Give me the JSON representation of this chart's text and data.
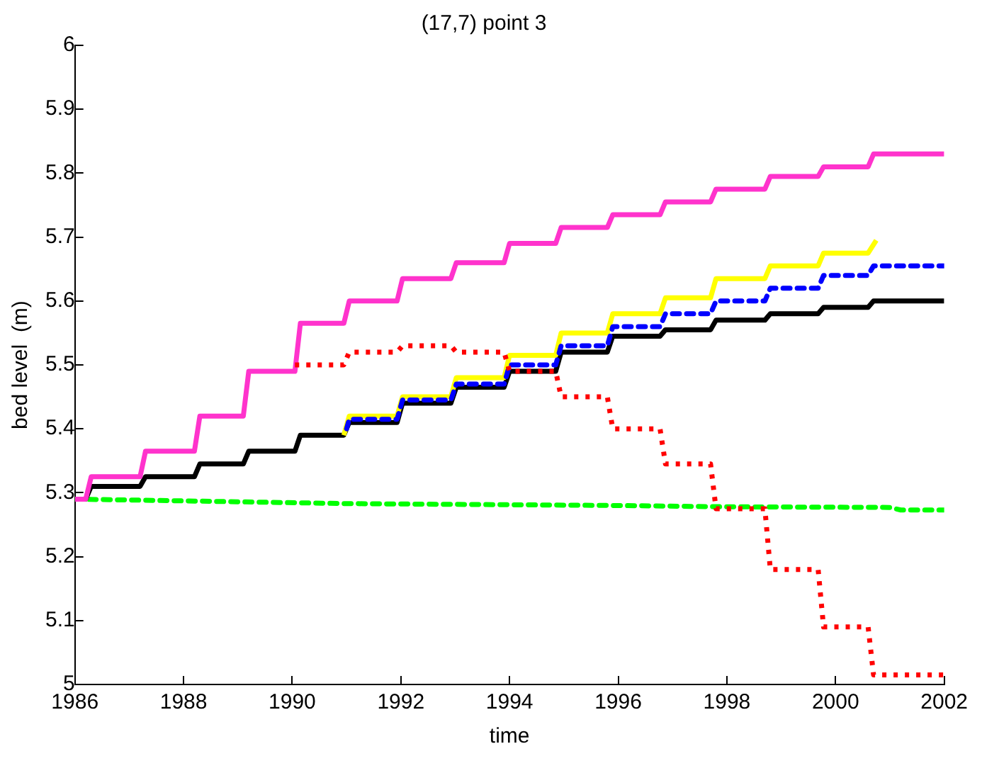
{
  "chart_data": {
    "type": "line",
    "title": "(17,7) point 3",
    "xlabel": "time",
    "ylabel": "bed level  (m)",
    "xlim": [
      1986,
      2002
    ],
    "xticks": [
      1986,
      1988,
      1990,
      1992,
      1994,
      1996,
      1998,
      2000,
      2002
    ],
    "ylim": [
      5,
      6
    ],
    "yticks": [
      5,
      5.1,
      5.2,
      5.3,
      5.4,
      5.5,
      5.6,
      5.7,
      5.8,
      5.9,
      6
    ],
    "grid": false,
    "legend": false,
    "marker": "none",
    "series": [
      {
        "color": "#00ff00",
        "line_style": "dashed",
        "x": [
          1986,
          1988.2,
          1991,
          1996,
          1998,
          2001,
          2001.2,
          2002
        ],
        "values": [
          5.29,
          5.287,
          5.283,
          5.28,
          5.278,
          5.277,
          5.273,
          5.273
        ]
      },
      {
        "color": "#000000",
        "line_style": "solid",
        "x": [
          1986,
          1986.2,
          1986.3,
          1987.2,
          1987.3,
          1988.2,
          1988.3,
          1989.1,
          1989.2,
          1990.05,
          1990.15,
          1990.95,
          1991.05,
          1991.93,
          1992.03,
          1992.92,
          1993.02,
          1993.9,
          1994,
          1994.85,
          1994.95,
          1995.8,
          1995.9,
          1996.77,
          1996.87,
          1997.7,
          1997.8,
          1998.7,
          1998.8,
          1999.68,
          1999.78,
          2000.6,
          2000.7,
          2002
        ],
        "values": [
          5.29,
          5.29,
          5.31,
          5.31,
          5.325,
          5.325,
          5.345,
          5.345,
          5.365,
          5.365,
          5.39,
          5.39,
          5.41,
          5.41,
          5.44,
          5.44,
          5.465,
          5.465,
          5.49,
          5.49,
          5.52,
          5.52,
          5.545,
          5.545,
          5.555,
          5.555,
          5.57,
          5.57,
          5.58,
          5.58,
          5.59,
          5.59,
          5.6,
          5.6
        ]
      },
      {
        "color": "#ffff00",
        "line_style": "solid",
        "x": [
          1990.95,
          1991.05,
          1991.93,
          1992.03,
          1992.92,
          1993.02,
          1993.9,
          1994,
          1994.85,
          1994.95,
          1995.8,
          1995.9,
          1996.77,
          1996.87,
          1997.7,
          1997.8,
          1998.7,
          1998.8,
          1999.68,
          1999.78,
          2000.6,
          2000.75
        ],
        "values": [
          5.39,
          5.42,
          5.42,
          5.45,
          5.45,
          5.48,
          5.48,
          5.515,
          5.515,
          5.55,
          5.55,
          5.58,
          5.58,
          5.605,
          5.605,
          5.635,
          5.635,
          5.655,
          5.655,
          5.675,
          5.675,
          5.695
        ]
      },
      {
        "color": "#0000ff",
        "line_style": "dashed",
        "x": [
          1991,
          1991.05,
          1991.93,
          1992.03,
          1992.92,
          1993.02,
          1993.9,
          1994,
          1994.85,
          1994.95,
          1995.8,
          1995.9,
          1996.77,
          1996.87,
          1997.7,
          1997.8,
          1998.7,
          1998.8,
          1999.68,
          1999.78,
          2000.6,
          2000.7,
          2002
        ],
        "values": [
          5.4,
          5.415,
          5.415,
          5.445,
          5.445,
          5.47,
          5.47,
          5.5,
          5.5,
          5.53,
          5.53,
          5.56,
          5.56,
          5.58,
          5.58,
          5.6,
          5.6,
          5.62,
          5.62,
          5.64,
          5.64,
          5.655,
          5.655
        ]
      },
      {
        "color": "#ff33cc",
        "line_style": "solid",
        "x": [
          1986,
          1986.2,
          1986.3,
          1987.2,
          1987.3,
          1988.2,
          1988.3,
          1989.1,
          1989.2,
          1990.05,
          1990.15,
          1990.95,
          1991.05,
          1991.93,
          1992.03,
          1992.92,
          1993.02,
          1993.9,
          1994,
          1994.85,
          1994.95,
          1995.8,
          1995.9,
          1996.77,
          1996.87,
          1997.7,
          1997.8,
          1998.7,
          1998.8,
          1999.68,
          1999.78,
          2000.6,
          2000.7,
          2002
        ],
        "values": [
          5.29,
          5.29,
          5.325,
          5.325,
          5.365,
          5.365,
          5.42,
          5.42,
          5.49,
          5.49,
          5.565,
          5.565,
          5.6,
          5.6,
          5.635,
          5.635,
          5.66,
          5.66,
          5.69,
          5.69,
          5.715,
          5.715,
          5.735,
          5.735,
          5.755,
          5.755,
          5.775,
          5.775,
          5.795,
          5.795,
          5.81,
          5.81,
          5.83,
          5.83
        ]
      },
      {
        "color": "#ff0000",
        "line_style": "dotted",
        "x": [
          1990.05,
          1990.95,
          1991.05,
          1991.93,
          1992.03,
          1992.92,
          1993.02,
          1993.9,
          1994,
          1994.85,
          1994.95,
          1995.8,
          1995.9,
          1996.77,
          1996.87,
          1997.7,
          1997.8,
          1998.7,
          1998.8,
          1999.68,
          1999.78,
          2000.6,
          2000.7,
          2002
        ],
        "values": [
          5.5,
          5.5,
          5.52,
          5.52,
          5.53,
          5.53,
          5.52,
          5.52,
          5.49,
          5.49,
          5.45,
          5.45,
          5.4,
          5.4,
          5.345,
          5.345,
          5.275,
          5.275,
          5.18,
          5.18,
          5.09,
          5.09,
          5.015,
          5.015
        ]
      }
    ]
  }
}
